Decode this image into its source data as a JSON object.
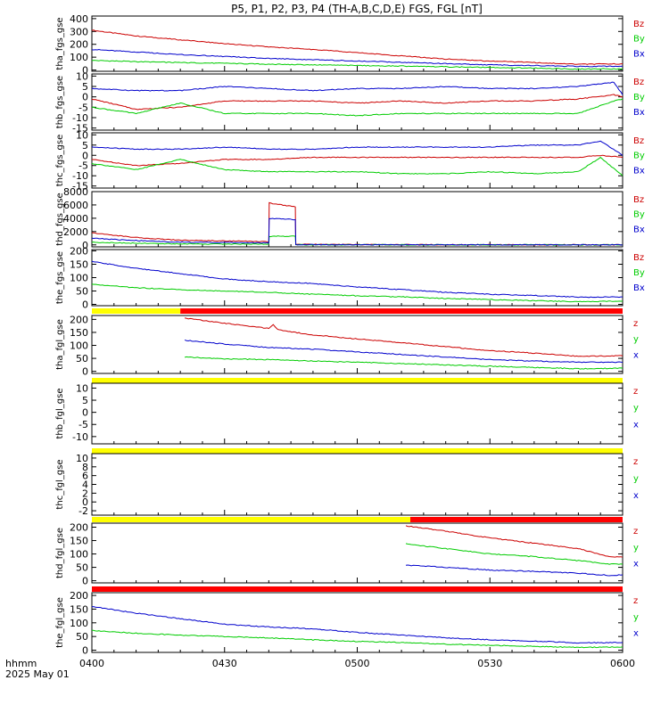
{
  "title": "P5, P1, P2, P3, P4 (TH-A,B,C,D,E) FGS, FGL [nT]",
  "colors": {
    "x": "#0000cc",
    "y": "#00cc00",
    "z": "#cc0000",
    "flag_yellow": "#ffff00",
    "flag_red": "#ff0000"
  },
  "footer": {
    "time_label": "hhmm",
    "date_label": "2025 May 01"
  },
  "chart_data": [
    {
      "type": "line",
      "panel": "tha_fgs_gse",
      "ylabel": "tha_fgs_gse",
      "ylim": [
        -10,
        420
      ],
      "yticks": [
        0,
        100,
        200,
        300,
        400
      ],
      "ytick_labels": [
        "0",
        "100",
        "200",
        "300",
        "400"
      ],
      "legend": [
        "Bz",
        "By",
        "Bx"
      ],
      "series": [
        {
          "name": "Bz",
          "component": "z",
          "x": [
            "0400",
            "0410",
            "0420",
            "0430",
            "0440",
            "0450",
            "0500",
            "0510",
            "0520",
            "0530",
            "0540",
            "0550",
            "0600"
          ],
          "values": [
            310,
            265,
            235,
            205,
            180,
            160,
            135,
            110,
            85,
            70,
            58,
            45,
            48
          ]
        },
        {
          "name": "By",
          "component": "y",
          "x": [
            "0400",
            "0410",
            "0420",
            "0430",
            "0440",
            "0450",
            "0500",
            "0510",
            "0520",
            "0530",
            "0540",
            "0550",
            "0600"
          ],
          "values": [
            75,
            65,
            58,
            52,
            45,
            40,
            35,
            30,
            25,
            20,
            15,
            8,
            10
          ]
        },
        {
          "name": "Bx",
          "component": "x",
          "x": [
            "0400",
            "0410",
            "0420",
            "0430",
            "0440",
            "0450",
            "0500",
            "0510",
            "0520",
            "0530",
            "0540",
            "0550",
            "0600"
          ],
          "values": [
            160,
            140,
            120,
            105,
            90,
            80,
            70,
            60,
            50,
            40,
            35,
            28,
            30
          ]
        }
      ]
    },
    {
      "type": "line",
      "panel": "thb_fgs_gse",
      "ylabel": "thb_fgs_gse",
      "ylim": [
        -16,
        11
      ],
      "yticks": [
        -15,
        -10,
        -5,
        0,
        5,
        10
      ],
      "ytick_labels": [
        "-15",
        "-10",
        "-5",
        "0",
        "5",
        "10"
      ],
      "legend": [
        "Bz",
        "By",
        "Bx"
      ],
      "series": [
        {
          "name": "Bz",
          "component": "z",
          "x": [
            "0400",
            "0410",
            "0420",
            "0430",
            "0440",
            "0450",
            "0500",
            "0510",
            "0520",
            "0530",
            "0540",
            "0550",
            "0558",
            "0600"
          ],
          "values": [
            -1,
            -6,
            -5,
            -2,
            -2,
            -2,
            -3,
            -2,
            -3,
            -2,
            -2,
            -1,
            1,
            0
          ]
        },
        {
          "name": "By",
          "component": "y",
          "x": [
            "0400",
            "0410",
            "0420",
            "0430",
            "0440",
            "0450",
            "0500",
            "0510",
            "0520",
            "0530",
            "0540",
            "0550",
            "0558",
            "0600"
          ],
          "values": [
            -5,
            -8,
            -3,
            -8,
            -8,
            -8,
            -9,
            -8,
            -8,
            -8,
            -8,
            -8,
            -2,
            -1
          ]
        },
        {
          "name": "Bx",
          "component": "x",
          "x": [
            "0400",
            "0410",
            "0420",
            "0430",
            "0440",
            "0450",
            "0500",
            "0510",
            "0520",
            "0530",
            "0540",
            "0550",
            "0558",
            "0600"
          ],
          "values": [
            4,
            3,
            3,
            5,
            4,
            3,
            4,
            4,
            5,
            4,
            4,
            5,
            7,
            1
          ]
        }
      ]
    },
    {
      "type": "line",
      "panel": "thc_fgs_gse",
      "ylabel": "thc_fgs_gse",
      "ylim": [
        -16,
        11
      ],
      "yticks": [
        -15,
        -10,
        -5,
        0,
        5,
        10
      ],
      "ytick_labels": [
        "-15",
        "-10",
        "-5",
        "0",
        "5",
        "10"
      ],
      "legend": [
        "Bz",
        "By",
        "Bx"
      ],
      "series": [
        {
          "name": "Bz",
          "component": "z",
          "x": [
            "0400",
            "0410",
            "0420",
            "0430",
            "0440",
            "0450",
            "0500",
            "0510",
            "0520",
            "0530",
            "0540",
            "0550",
            "0555",
            "0600"
          ],
          "values": [
            -2,
            -5,
            -4,
            -2,
            -2,
            -1,
            -1,
            -1,
            -1,
            -1,
            -1,
            -1,
            0,
            -1
          ]
        },
        {
          "name": "By",
          "component": "y",
          "x": [
            "0400",
            "0410",
            "0420",
            "0430",
            "0440",
            "0450",
            "0500",
            "0510",
            "0520",
            "0530",
            "0540",
            "0550",
            "0555",
            "0600"
          ],
          "values": [
            -4,
            -7,
            -2,
            -7,
            -8,
            -8,
            -8,
            -9,
            -9,
            -8,
            -9,
            -8,
            -1,
            -10
          ]
        },
        {
          "name": "Bx",
          "component": "x",
          "x": [
            "0400",
            "0410",
            "0420",
            "0430",
            "0440",
            "0450",
            "0500",
            "0510",
            "0520",
            "0530",
            "0540",
            "0550",
            "0555",
            "0600"
          ],
          "values": [
            4,
            3,
            3,
            4,
            3,
            3,
            4,
            4,
            4,
            4,
            5,
            5,
            7,
            0
          ]
        }
      ]
    },
    {
      "type": "line",
      "panel": "thd_fgs_gse",
      "ylabel": "thd_fgs_gse",
      "ylim": [
        -300,
        8000
      ],
      "yticks": [
        0,
        2000,
        4000,
        6000,
        8000
      ],
      "ytick_labels": [
        "0",
        "2000",
        "4000",
        "6000",
        "8000"
      ],
      "legend": [
        "Bz",
        "By",
        "Bx"
      ],
      "series": [
        {
          "name": "Bz",
          "component": "z",
          "x": [
            "0400",
            "0410",
            "0420",
            "0440",
            "0440.1",
            "0446",
            "0446.1",
            "0500",
            "0520",
            "0540",
            "0600"
          ],
          "values": [
            1800,
            1100,
            700,
            500,
            6300,
            5700,
            80,
            40,
            25,
            15,
            10
          ]
        },
        {
          "name": "By",
          "component": "y",
          "x": [
            "0400",
            "0410",
            "0420",
            "0440",
            "0440.1",
            "0446",
            "0446.1",
            "0500",
            "0520",
            "0540",
            "0600"
          ],
          "values": [
            400,
            250,
            150,
            120,
            1300,
            1300,
            20,
            10,
            8,
            5,
            5
          ]
        },
        {
          "name": "Bx",
          "component": "x",
          "x": [
            "0400",
            "0410",
            "0420",
            "0440",
            "0440.1",
            "0446",
            "0446.1",
            "0500",
            "0520",
            "0540",
            "0600"
          ],
          "values": [
            1000,
            650,
            400,
            300,
            4000,
            3800,
            40,
            20,
            15,
            10,
            8
          ]
        }
      ]
    },
    {
      "type": "line",
      "panel": "the_fgs_gse",
      "ylabel": "the_fgs_gse",
      "ylim": [
        -5,
        205
      ],
      "yticks": [
        0,
        50,
        100,
        150,
        200
      ],
      "ytick_labels": [
        "0",
        "50",
        "100",
        "150",
        "200"
      ],
      "legend": [
        "Bz",
        "By",
        "Bx"
      ],
      "series": [
        {
          "name": "By",
          "component": "y",
          "x": [
            "0400",
            "0410",
            "0420",
            "0430",
            "0440",
            "0450",
            "0500",
            "0510",
            "0520",
            "0530",
            "0540",
            "0550",
            "0600"
          ],
          "values": [
            75,
            62,
            55,
            50,
            45,
            38,
            32,
            28,
            22,
            18,
            14,
            10,
            12
          ]
        },
        {
          "name": "Bx",
          "component": "x",
          "x": [
            "0400",
            "0410",
            "0420",
            "0430",
            "0440",
            "0450",
            "0500",
            "0510",
            "0520",
            "0530",
            "0540",
            "0550",
            "0600"
          ],
          "values": [
            160,
            135,
            115,
            95,
            85,
            78,
            65,
            55,
            45,
            38,
            33,
            27,
            28
          ]
        }
      ]
    },
    {
      "type": "line",
      "panel": "tha_fgl_gse",
      "ylabel": "tha_fgl_gse",
      "ylim": [
        -8,
        215
      ],
      "yticks": [
        0,
        50,
        100,
        150,
        200
      ],
      "ytick_labels": [
        "0",
        "50",
        "100",
        "150",
        "200"
      ],
      "legend": [
        "z",
        "y",
        "x"
      ],
      "flag_bar": [
        {
          "from": "0400",
          "to": "0420",
          "color": "yellow"
        },
        {
          "from": "0420",
          "to": "0600",
          "color": "red"
        }
      ],
      "series": [
        {
          "name": "z",
          "component": "z",
          "x": [
            "0421",
            "0430",
            "0440",
            "0441",
            "0442",
            "0450",
            "0500",
            "0510",
            "0520",
            "0530",
            "0540",
            "0550",
            "0600"
          ],
          "values": [
            205,
            185,
            165,
            180,
            160,
            140,
            125,
            110,
            95,
            80,
            70,
            58,
            60
          ]
        },
        {
          "name": "y",
          "component": "y",
          "x": [
            "0421",
            "0430",
            "0440",
            "0450",
            "0500",
            "0510",
            "0520",
            "0530",
            "0540",
            "0550",
            "0600"
          ],
          "values": [
            55,
            48,
            45,
            40,
            35,
            30,
            25,
            20,
            15,
            10,
            12
          ]
        },
        {
          "name": "x",
          "component": "x",
          "x": [
            "0421",
            "0430",
            "0440",
            "0450",
            "0500",
            "0510",
            "0520",
            "0530",
            "0540",
            "0550",
            "0600"
          ],
          "values": [
            120,
            105,
            92,
            85,
            75,
            65,
            55,
            45,
            40,
            35,
            35
          ]
        }
      ]
    },
    {
      "type": "line",
      "panel": "thb_fgl_gse",
      "ylabel": "thb_fgl_gse",
      "ylim": [
        -13,
        12
      ],
      "yticks": [
        -10,
        -5,
        0,
        5,
        10
      ],
      "ytick_labels": [
        "-10",
        "-5",
        "0",
        "5",
        "10"
      ],
      "legend": [
        "z",
        "y",
        "x"
      ],
      "flag_bar": [
        {
          "from": "0400",
          "to": "0600",
          "color": "yellow"
        }
      ],
      "series": []
    },
    {
      "type": "line",
      "panel": "thc_fgl_gse",
      "ylabel": "thc_fgl_gse",
      "ylim": [
        -3,
        11
      ],
      "yticks": [
        -2,
        0,
        2,
        4,
        6,
        8,
        10
      ],
      "ytick_labels": [
        "-2",
        "0",
        "2",
        "4",
        "6",
        "8",
        "10"
      ],
      "legend": [
        "z",
        "y",
        "x"
      ],
      "flag_bar": [
        {
          "from": "0400",
          "to": "0600",
          "color": "yellow"
        }
      ],
      "series": []
    },
    {
      "type": "line",
      "panel": "thd_fgl_gse",
      "ylabel": "thd_fgl_gse",
      "ylim": [
        -8,
        215
      ],
      "yticks": [
        0,
        50,
        100,
        150,
        200
      ],
      "ytick_labels": [
        "0",
        "50",
        "100",
        "150",
        "200"
      ],
      "legend": [
        "z",
        "y",
        "x"
      ],
      "flag_bar": [
        {
          "from": "0400",
          "to": "0512",
          "color": "yellow"
        },
        {
          "from": "0512",
          "to": "0600",
          "color": "red"
        }
      ],
      "series": [
        {
          "name": "z",
          "component": "z",
          "x": [
            "0511",
            "0520",
            "0530",
            "0540",
            "0550",
            "0557",
            "0600"
          ],
          "values": [
            205,
            185,
            160,
            140,
            120,
            90,
            88
          ]
        },
        {
          "name": "y",
          "component": "y",
          "x": [
            "0511",
            "0520",
            "0530",
            "0540",
            "0550",
            "0557",
            "0600"
          ],
          "values": [
            138,
            120,
            100,
            90,
            75,
            62,
            62
          ]
        },
        {
          "name": "x",
          "component": "x",
          "x": [
            "0511",
            "0520",
            "0530",
            "0540",
            "0550",
            "0557",
            "0600"
          ],
          "values": [
            58,
            50,
            40,
            35,
            28,
            20,
            22
          ]
        }
      ]
    },
    {
      "type": "line",
      "panel": "the_fgl_gse",
      "ylabel": "the_fgl_gse",
      "ylim": [
        -8,
        210
      ],
      "yticks": [
        0,
        50,
        100,
        150,
        200
      ],
      "ytick_labels": [
        "0",
        "50",
        "100",
        "150",
        "200"
      ],
      "legend": [
        "z",
        "y",
        "x"
      ],
      "flag_bar": [
        {
          "from": "0400",
          "to": "0600",
          "color": "red"
        }
      ],
      "series": [
        {
          "name": "y",
          "component": "y",
          "x": [
            "0400",
            "0410",
            "0420",
            "0430",
            "0440",
            "0450",
            "0500",
            "0510",
            "0520",
            "0530",
            "0540",
            "0550",
            "0600"
          ],
          "values": [
            72,
            62,
            55,
            50,
            45,
            38,
            32,
            28,
            22,
            18,
            14,
            10,
            12
          ]
        },
        {
          "name": "x",
          "component": "x",
          "x": [
            "0400",
            "0410",
            "0420",
            "0430",
            "0440",
            "0450",
            "0500",
            "0510",
            "0520",
            "0530",
            "0540",
            "0550",
            "0600"
          ],
          "values": [
            160,
            135,
            115,
            95,
            85,
            78,
            65,
            55,
            45,
            38,
            33,
            27,
            28
          ]
        }
      ]
    }
  ],
  "x_axis": {
    "ticks": [
      "0400",
      "0430",
      "0500",
      "0530",
      "0600"
    ],
    "range": [
      "0400",
      "0600"
    ]
  }
}
